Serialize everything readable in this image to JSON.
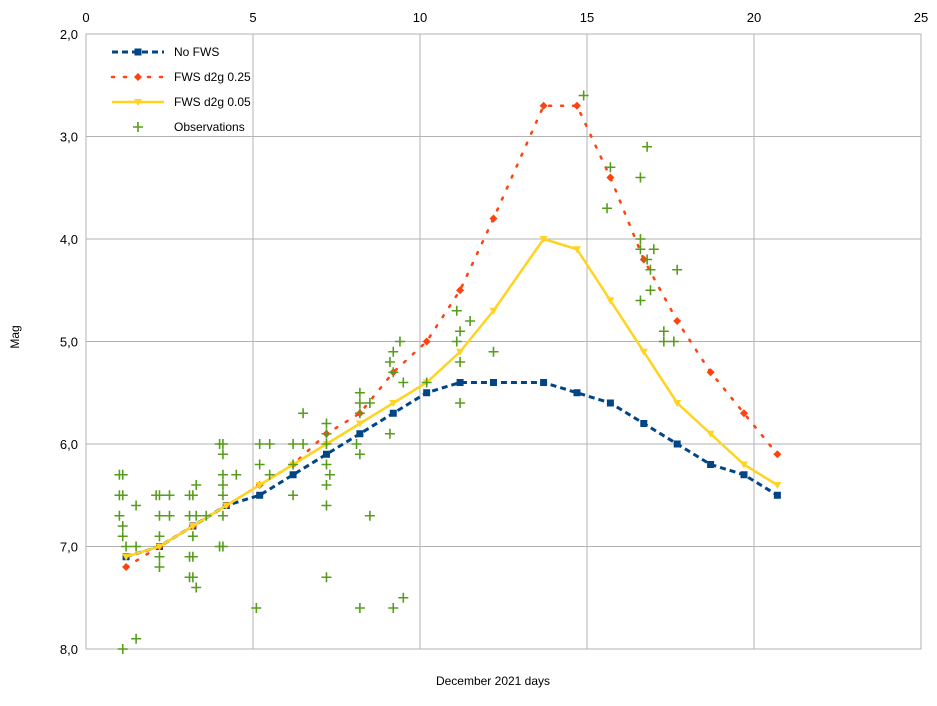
{
  "chart_data": {
    "type": "line",
    "xlabel": "December 2021 days",
    "ylabel": "Mag",
    "xlim": [
      0,
      25
    ],
    "ylim": [
      2.0,
      8.0
    ],
    "y_inverted": true,
    "x_ticks": [
      "0",
      "5",
      "10",
      "15",
      "20",
      "25"
    ],
    "y_ticks": [
      "2,0",
      "3,0",
      "4,0",
      "5,0",
      "6,0",
      "7,0",
      "8,0"
    ],
    "grid": true,
    "x_axis_position": "top",
    "legend_position": "top-left",
    "series": [
      {
        "name": "No FWS",
        "style": "dashed",
        "marker": "square",
        "color": "#004586",
        "points": [
          [
            1.2,
            7.1
          ],
          [
            2.2,
            7.0
          ],
          [
            3.2,
            6.8
          ],
          [
            4.2,
            6.6
          ],
          [
            5.2,
            6.5
          ],
          [
            6.2,
            6.3
          ],
          [
            7.2,
            6.1
          ],
          [
            8.2,
            5.9
          ],
          [
            9.2,
            5.7
          ],
          [
            10.2,
            5.5
          ],
          [
            11.2,
            5.4
          ],
          [
            12.2,
            5.4
          ],
          [
            13.7,
            5.4
          ],
          [
            14.7,
            5.5
          ],
          [
            15.7,
            5.6
          ],
          [
            16.7,
            5.8
          ],
          [
            17.7,
            6.0
          ],
          [
            18.7,
            6.2
          ],
          [
            19.7,
            6.3
          ],
          [
            20.7,
            6.5
          ]
        ]
      },
      {
        "name": "FWS d2g 0.25",
        "style": "dotted",
        "marker": "diamond",
        "color": "#ff420e",
        "points": [
          [
            1.2,
            7.2
          ],
          [
            2.2,
            7.0
          ],
          [
            3.2,
            6.8
          ],
          [
            4.2,
            6.6
          ],
          [
            5.2,
            6.4
          ],
          [
            6.2,
            6.2
          ],
          [
            7.2,
            5.9
          ],
          [
            8.2,
            5.7
          ],
          [
            9.2,
            5.3
          ],
          [
            10.2,
            5.0
          ],
          [
            11.2,
            4.5
          ],
          [
            12.2,
            3.8
          ],
          [
            13.7,
            2.7
          ],
          [
            14.7,
            2.7
          ],
          [
            15.7,
            3.4
          ],
          [
            16.7,
            4.2
          ],
          [
            17.7,
            4.8
          ],
          [
            18.7,
            5.3
          ],
          [
            19.7,
            5.7
          ],
          [
            20.7,
            6.1
          ]
        ]
      },
      {
        "name": "FWS d2g 0.05",
        "style": "solid",
        "marker": "triangle-down",
        "color": "#ffd320",
        "points": [
          [
            1.2,
            7.1
          ],
          [
            2.2,
            7.0
          ],
          [
            3.2,
            6.8
          ],
          [
            4.2,
            6.6
          ],
          [
            5.2,
            6.4
          ],
          [
            6.2,
            6.2
          ],
          [
            7.2,
            6.0
          ],
          [
            8.2,
            5.8
          ],
          [
            9.2,
            5.6
          ],
          [
            10.2,
            5.4
          ],
          [
            11.2,
            5.1
          ],
          [
            12.2,
            4.7
          ],
          [
            13.7,
            4.0
          ],
          [
            14.7,
            4.1
          ],
          [
            15.7,
            4.6
          ],
          [
            16.7,
            5.1
          ],
          [
            17.7,
            5.6
          ],
          [
            18.7,
            5.9
          ],
          [
            19.7,
            6.2
          ],
          [
            20.7,
            6.4
          ]
        ]
      },
      {
        "name": "Observations",
        "style": "none",
        "marker": "plus",
        "color": "#579d1c",
        "points": [
          [
            1.0,
            6.3
          ],
          [
            1.1,
            6.3
          ],
          [
            1.0,
            6.5
          ],
          [
            1.1,
            6.5
          ],
          [
            1.0,
            6.7
          ],
          [
            1.1,
            6.8
          ],
          [
            1.1,
            6.9
          ],
          [
            1.2,
            7.0
          ],
          [
            1.1,
            8.0
          ],
          [
            1.5,
            7.9
          ],
          [
            1.5,
            6.6
          ],
          [
            1.5,
            7.0
          ],
          [
            2.1,
            6.5
          ],
          [
            2.2,
            6.5
          ],
          [
            2.5,
            6.5
          ],
          [
            2.2,
            6.7
          ],
          [
            2.5,
            6.7
          ],
          [
            2.2,
            6.9
          ],
          [
            2.2,
            7.1
          ],
          [
            2.2,
            7.2
          ],
          [
            3.1,
            6.5
          ],
          [
            3.2,
            6.5
          ],
          [
            3.3,
            6.4
          ],
          [
            3.1,
            6.7
          ],
          [
            3.3,
            6.7
          ],
          [
            3.6,
            6.7
          ],
          [
            3.2,
            6.9
          ],
          [
            3.1,
            7.1
          ],
          [
            3.2,
            7.1
          ],
          [
            3.1,
            7.3
          ],
          [
            3.2,
            7.3
          ],
          [
            3.3,
            7.4
          ],
          [
            4.0,
            6.0
          ],
          [
            4.1,
            6.0
          ],
          [
            4.1,
            6.1
          ],
          [
            4.1,
            6.3
          ],
          [
            4.1,
            6.4
          ],
          [
            4.1,
            6.5
          ],
          [
            4.5,
            6.3
          ],
          [
            4.1,
            6.7
          ],
          [
            4.0,
            7.0
          ],
          [
            4.1,
            7.0
          ],
          [
            5.2,
            6.0
          ],
          [
            5.5,
            6.0
          ],
          [
            5.2,
            6.2
          ],
          [
            5.5,
            6.3
          ],
          [
            5.1,
            7.6
          ],
          [
            6.2,
            6.0
          ],
          [
            6.5,
            6.0
          ],
          [
            6.2,
            6.2
          ],
          [
            6.2,
            6.5
          ],
          [
            6.5,
            5.7
          ],
          [
            7.2,
            5.8
          ],
          [
            7.2,
            5.9
          ],
          [
            7.2,
            6.0
          ],
          [
            7.2,
            6.2
          ],
          [
            7.3,
            6.3
          ],
          [
            7.2,
            6.4
          ],
          [
            7.2,
            6.6
          ],
          [
            7.2,
            7.3
          ],
          [
            8.2,
            5.5
          ],
          [
            8.2,
            5.6
          ],
          [
            8.2,
            5.7
          ],
          [
            8.1,
            6.0
          ],
          [
            8.2,
            6.1
          ],
          [
            8.5,
            5.6
          ],
          [
            8.5,
            6.7
          ],
          [
            8.2,
            7.6
          ],
          [
            9.1,
            5.2
          ],
          [
            9.2,
            5.1
          ],
          [
            9.2,
            5.3
          ],
          [
            9.4,
            5.0
          ],
          [
            9.5,
            5.4
          ],
          [
            9.1,
            5.9
          ],
          [
            9.2,
            7.6
          ],
          [
            9.5,
            7.5
          ],
          [
            10.2,
            5.4
          ],
          [
            11.1,
            4.7
          ],
          [
            11.2,
            4.9
          ],
          [
            11.1,
            5.0
          ],
          [
            11.2,
            5.2
          ],
          [
            11.2,
            5.6
          ],
          [
            11.5,
            4.8
          ],
          [
            12.2,
            5.1
          ],
          [
            14.9,
            2.6
          ],
          [
            15.7,
            3.3
          ],
          [
            15.6,
            3.7
          ],
          [
            16.8,
            3.1
          ],
          [
            16.6,
            3.4
          ],
          [
            16.6,
            4.0
          ],
          [
            16.6,
            4.1
          ],
          [
            16.8,
            4.2
          ],
          [
            17.0,
            4.1
          ],
          [
            16.9,
            4.3
          ],
          [
            16.6,
            4.6
          ],
          [
            16.9,
            4.5
          ],
          [
            17.3,
            4.9
          ],
          [
            17.3,
            5.0
          ],
          [
            17.6,
            5.0
          ],
          [
            17.7,
            4.3
          ]
        ]
      }
    ]
  }
}
